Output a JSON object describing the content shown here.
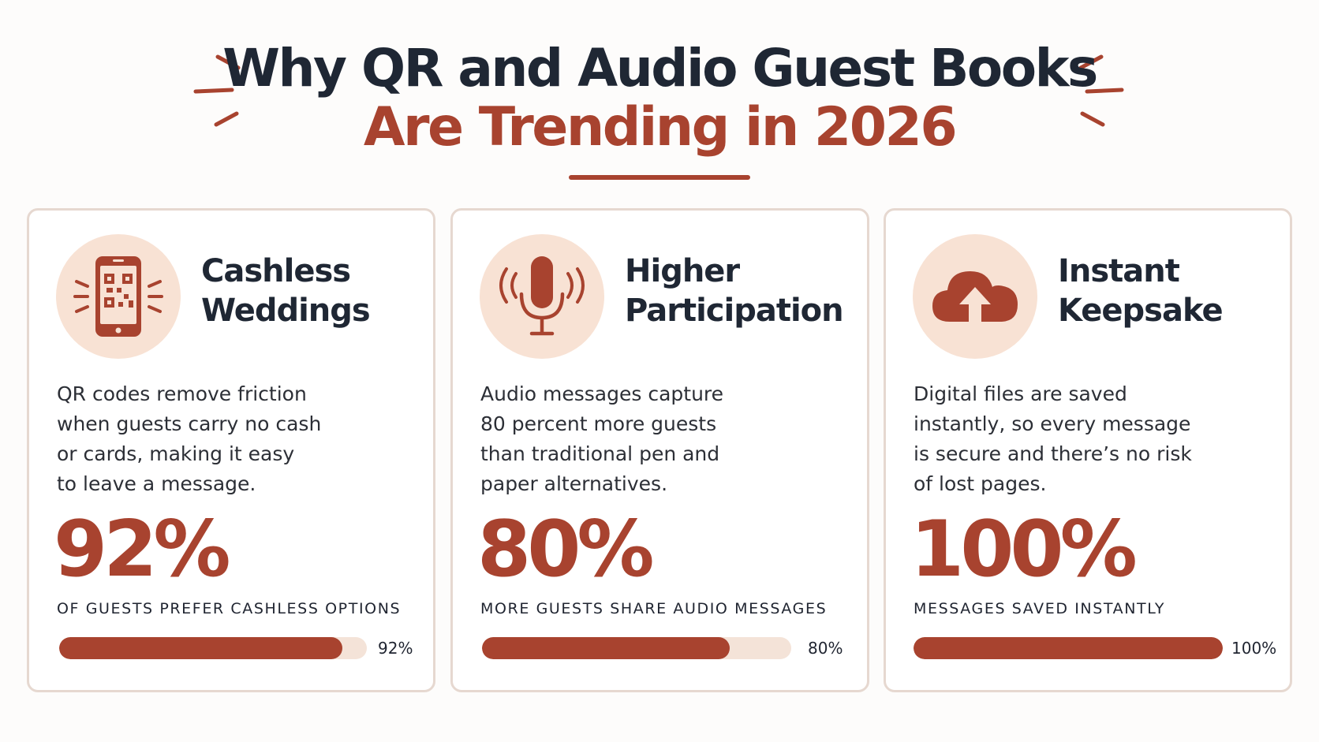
{
  "header": {
    "title_line1": "Why QR and Audio Guest Books",
    "title_line2": "Are Trending in 2026"
  },
  "colors": {
    "accent": "#a8432f",
    "dark": "#1f2734",
    "icon_bg": "#f8e2d4",
    "bar_track": "#f4e3d8",
    "card_border": "#e6d8d0"
  },
  "cards": [
    {
      "icon": "qr-phone-icon",
      "title_line1": "Cashless",
      "title_line2": "Weddings",
      "desc": [
        "QR codes remove friction",
        "when guests carry no cash",
        "or cards, making it easy",
        "to leave a message."
      ],
      "stat": "92%",
      "stat_label": "OF GUESTS PREFER CASHLESS OPTIONS",
      "progress": 0.92,
      "progress_label": "92%"
    },
    {
      "icon": "microphone-icon",
      "title_line1": "Higher",
      "title_line2": "Participation",
      "desc": [
        "Audio messages capture",
        "80 percent more guests",
        "than traditional pen and",
        "paper alternatives."
      ],
      "stat": "80%",
      "stat_label": "MORE GUESTS SHARE AUDIO MESSAGES",
      "progress": 0.8,
      "progress_label": "80%"
    },
    {
      "icon": "cloud-upload-icon",
      "title_line1": "Instant",
      "title_line2": "Keepsake",
      "desc": [
        "Digital files are saved",
        "instantly, so every message",
        "is secure and there’s no risk",
        "of lost pages."
      ],
      "stat": "100%",
      "stat_label": "MESSAGES SAVED INSTANTLY",
      "progress": 1.0,
      "progress_label": "100%"
    }
  ]
}
